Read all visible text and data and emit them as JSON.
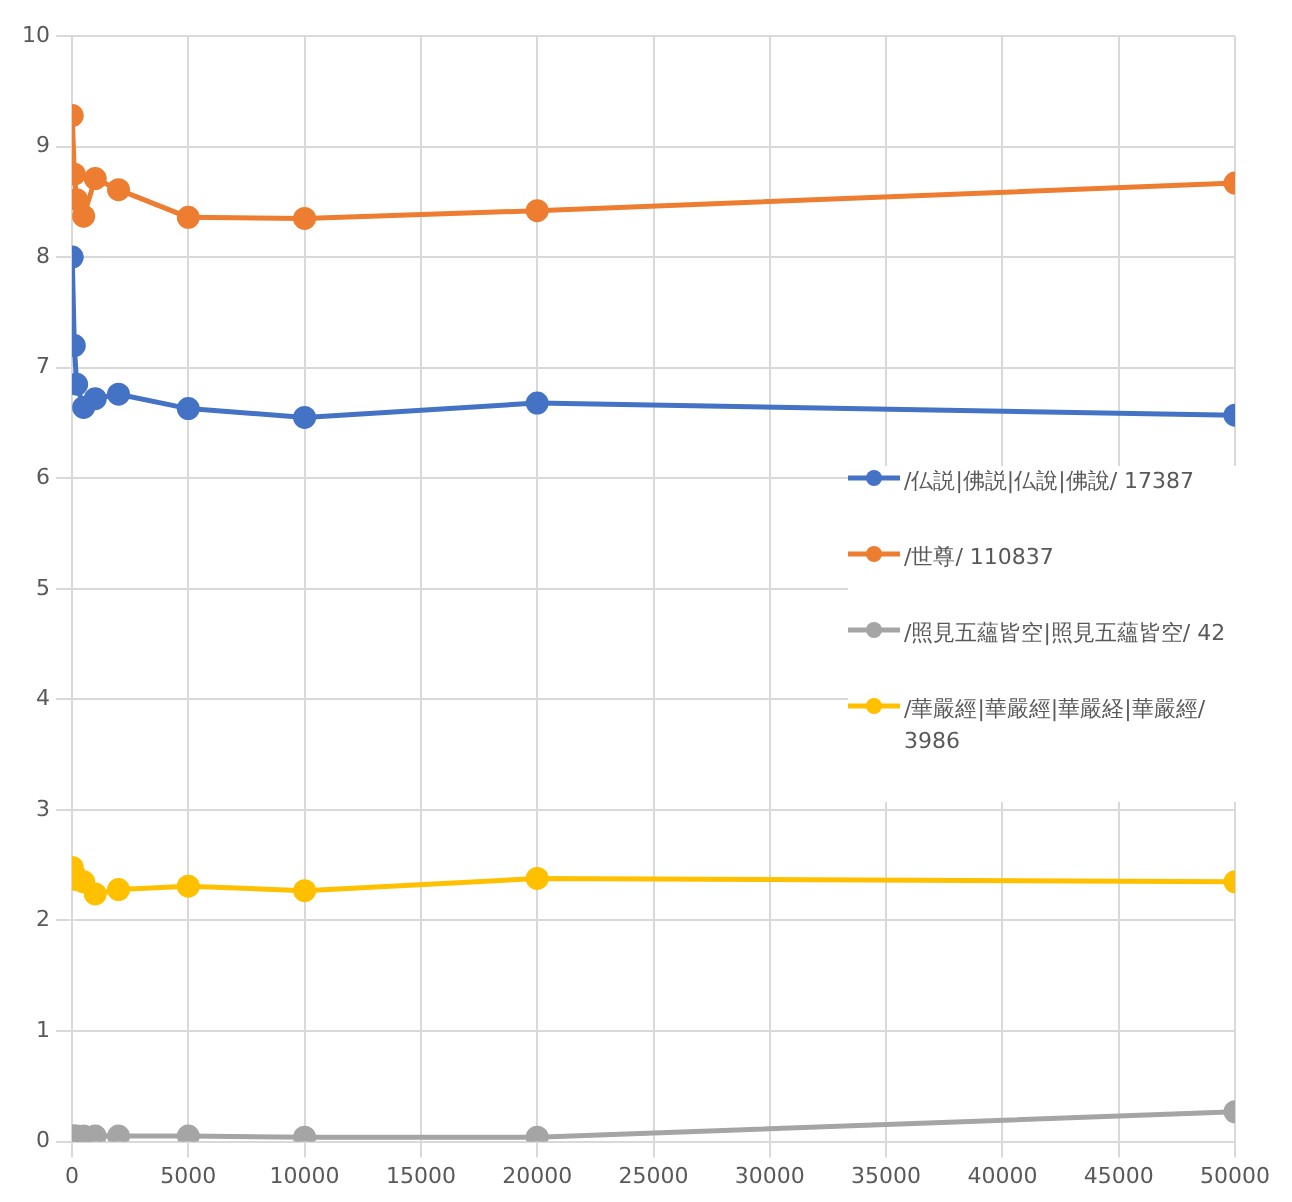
{
  "chart_data": {
    "type": "line",
    "x": [
      10,
      100,
      200,
      500,
      1000,
      2000,
      5000,
      10000,
      20000,
      50000
    ],
    "series": [
      {
        "name": "/仏説|佛説|仏說|佛說/ 17387",
        "color": "#4472c4",
        "values": [
          8.0,
          7.2,
          6.85,
          6.64,
          6.72,
          6.76,
          6.63,
          6.55,
          6.68,
          6.57
        ]
      },
      {
        "name": "/世尊/ 110837",
        "color": "#ed7d31",
        "values": [
          9.28,
          8.75,
          8.52,
          8.37,
          8.71,
          8.61,
          8.36,
          8.35,
          8.42,
          8.67
        ]
      },
      {
        "name": "/照見五蘊皆空|照見五蘊皆空/ 42",
        "color": "#a5a5a5",
        "values": [
          0.05,
          0.05,
          0.05,
          0.05,
          0.05,
          0.05,
          0.05,
          0.04,
          0.04,
          0.27
        ]
      },
      {
        "name": "/華嚴經|華嚴經|華嚴経|華嚴經/ 3986",
        "color": "#ffc000",
        "values": [
          2.48,
          2.42,
          2.37,
          2.35,
          2.24,
          2.28,
          2.31,
          2.27,
          2.38,
          2.35
        ]
      }
    ],
    "xlim": [
      0,
      50000
    ],
    "xticks": [
      0,
      5000,
      10000,
      15000,
      20000,
      25000,
      30000,
      35000,
      40000,
      45000,
      50000
    ],
    "ylim": [
      0,
      10
    ],
    "yticks": [
      0,
      1,
      2,
      3,
      4,
      5,
      6,
      7,
      8,
      9,
      10
    ],
    "grid": true,
    "legend": "right",
    "marker": "circle",
    "line_style": "solid"
  }
}
